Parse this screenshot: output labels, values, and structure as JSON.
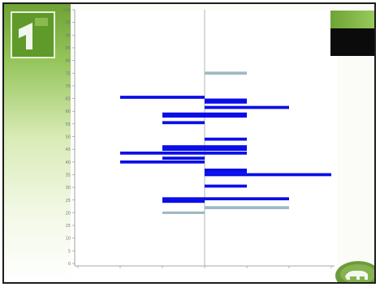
{
  "colors": {
    "bar_dark": "#0a0ee8",
    "bar_light": "#9fb9c4",
    "green": "#6ea335",
    "axis": "#8a8a8a"
  },
  "decor": {
    "logo_icon": "stylized-green-logo-icon",
    "corner_icon": "elephant-silhouette-icon"
  },
  "chart_data": {
    "type": "bar",
    "orientation": "horizontal-diverging",
    "ylim": [
      0,
      100
    ],
    "xlim": [
      -3,
      3
    ],
    "y_ticks": [
      0,
      5,
      10,
      15,
      20,
      25,
      30,
      35,
      40,
      45,
      50,
      55,
      60,
      65,
      70,
      75,
      80,
      85,
      90,
      95,
      100
    ],
    "y_tick_labels": [
      "0",
      "5",
      "10",
      "15",
      "20",
      "25",
      "30",
      "35",
      "40",
      "45",
      "50",
      "55",
      "60",
      "65",
      "70",
      "75",
      "80",
      "85",
      "90",
      "95",
      "100"
    ],
    "x_ticks": [
      -3,
      -2,
      -1,
      0,
      1,
      2,
      3
    ],
    "bars": [
      {
        "y": 75.0,
        "left": 0.0,
        "right": 1.0,
        "thickness": 1.2,
        "color": "light"
      },
      {
        "y": 65.5,
        "left": -2.0,
        "right": 0.0,
        "thickness": 1.2,
        "color": "dark"
      },
      {
        "y": 64.0,
        "left": 0.0,
        "right": 1.0,
        "thickness": 2.0,
        "color": "dark"
      },
      {
        "y": 61.5,
        "left": 0.0,
        "right": 2.0,
        "thickness": 1.2,
        "color": "dark"
      },
      {
        "y": 58.5,
        "left": -1.0,
        "right": 1.0,
        "thickness": 2.0,
        "color": "dark"
      },
      {
        "y": 55.5,
        "left": -1.0,
        "right": 0.0,
        "thickness": 1.2,
        "color": "dark"
      },
      {
        "y": 49.0,
        "left": 0.0,
        "right": 1.0,
        "thickness": 1.2,
        "color": "dark"
      },
      {
        "y": 45.5,
        "left": -1.0,
        "right": 1.0,
        "thickness": 2.2,
        "color": "dark"
      },
      {
        "y": 43.5,
        "left": -2.0,
        "right": 1.0,
        "thickness": 1.2,
        "color": "dark"
      },
      {
        "y": 41.5,
        "left": -1.0,
        "right": 0.0,
        "thickness": 1.2,
        "color": "dark"
      },
      {
        "y": 40.0,
        "left": -2.0,
        "right": 0.0,
        "thickness": 1.2,
        "color": "dark"
      },
      {
        "y": 36.5,
        "left": 0.0,
        "right": 1.0,
        "thickness": 1.8,
        "color": "dark"
      },
      {
        "y": 35.0,
        "left": 0.0,
        "right": 3.0,
        "thickness": 1.2,
        "color": "dark"
      },
      {
        "y": 30.5,
        "left": 0.0,
        "right": 1.0,
        "thickness": 1.2,
        "color": "dark"
      },
      {
        "y": 25.5,
        "left": -1.0,
        "right": 2.0,
        "thickness": 1.2,
        "color": "dark"
      },
      {
        "y": 24.5,
        "left": -1.0,
        "right": 0.0,
        "thickness": 1.2,
        "color": "dark"
      },
      {
        "y": 22.0,
        "left": 0.0,
        "right": 2.0,
        "thickness": 1.2,
        "color": "light"
      },
      {
        "y": 20.0,
        "left": -1.0,
        "right": 0.0,
        "thickness": 1.0,
        "color": "light"
      }
    ],
    "title": "",
    "xlabel": "",
    "ylabel": ""
  }
}
